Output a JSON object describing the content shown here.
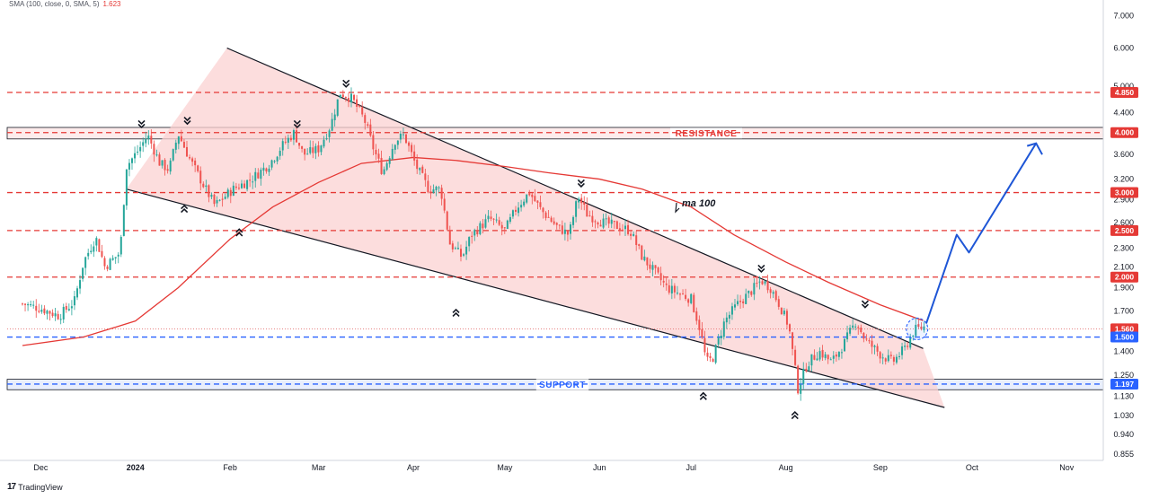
{
  "indicator": {
    "label": "SMA (100, close, 0, SMA, 5)",
    "value": "1.623"
  },
  "branding": {
    "logo_mark": "17",
    "name": "TradingView"
  },
  "colors": {
    "bull": "#26a69a",
    "bear": "#ef5350",
    "sma": "#e53935",
    "resistance": "#e53935",
    "support": "#2962ff",
    "channel_fill": "#fbd2d2",
    "projection": "#1e56d6"
  },
  "chart_data": {
    "type": "candlestick",
    "y_scale": "log",
    "ylim": [
      0.83,
      7.3
    ],
    "x_tick_labels": [
      "Dec",
      "2024",
      "Feb",
      "Mar",
      "Apr",
      "May",
      "Jun",
      "Jul",
      "Aug",
      "Sep",
      "Oct",
      "Nov"
    ],
    "y_tick_labels": [
      "7.000",
      "6.000",
      "5.000",
      "4.400",
      "3.600",
      "3.200",
      "2.900",
      "2.600",
      "2.300",
      "2.100",
      "1.900",
      "1.700",
      "1.400",
      "1.250",
      "1.130",
      "1.030",
      "0.940",
      "0.855"
    ],
    "price_badges": [
      {
        "label": "4.850",
        "value": 4.85,
        "kind": "resistance"
      },
      {
        "label": "4.000",
        "value": 4.0,
        "kind": "resistance"
      },
      {
        "label": "3.000",
        "value": 3.0,
        "kind": "resistance"
      },
      {
        "label": "2.500",
        "value": 2.5,
        "kind": "resistance"
      },
      {
        "label": "2.000",
        "value": 2.0,
        "kind": "resistance"
      },
      {
        "label": "1.560",
        "value": 1.56,
        "kind": "last"
      },
      {
        "label": "1.500",
        "value": 1.5,
        "kind": "support"
      },
      {
        "label": "1.197",
        "value": 1.197,
        "kind": "support"
      }
    ],
    "zones": [
      {
        "label": "RESISTANCE",
        "low": 3.88,
        "high": 4.1,
        "kind": "resistance"
      },
      {
        "label": "SUPPORT",
        "low": 1.165,
        "high": 1.225,
        "kind": "support"
      }
    ],
    "ma_label": "ma 100",
    "price_path": [
      [
        "2023-11-25",
        1.76
      ],
      [
        "2023-12-01",
        1.72
      ],
      [
        "2023-12-07",
        1.66
      ],
      [
        "2023-12-12",
        1.78
      ],
      [
        "2023-12-15",
        2.15
      ],
      [
        "2023-12-19",
        2.42
      ],
      [
        "2023-12-22",
        2.1
      ],
      [
        "2023-12-27",
        2.25
      ],
      [
        "2023-12-29",
        3.4
      ],
      [
        "2024-01-02",
        3.68
      ],
      [
        "2024-01-05",
        3.95
      ],
      [
        "2024-01-09",
        3.45
      ],
      [
        "2024-01-12",
        3.35
      ],
      [
        "2024-01-15",
        3.98
      ],
      [
        "2024-01-19",
        3.5
      ],
      [
        "2024-01-24",
        3.05
      ],
      [
        "2024-01-27",
        2.82
      ],
      [
        "2024-02-02",
        3.05
      ],
      [
        "2024-02-08",
        3.2
      ],
      [
        "2024-02-14",
        3.45
      ],
      [
        "2024-02-18",
        3.75
      ],
      [
        "2024-02-22",
        4.0
      ],
      [
        "2024-02-25",
        3.6
      ],
      [
        "2024-03-01",
        3.7
      ],
      [
        "2024-03-05",
        4.15
      ],
      [
        "2024-03-08",
        4.85
      ],
      [
        "2024-03-12",
        4.7
      ],
      [
        "2024-03-16",
        4.25
      ],
      [
        "2024-03-19",
        3.7
      ],
      [
        "2024-03-22",
        3.3
      ],
      [
        "2024-03-26",
        3.85
      ],
      [
        "2024-03-29",
        3.95
      ],
      [
        "2024-04-02",
        3.4
      ],
      [
        "2024-04-06",
        3.05
      ],
      [
        "2024-04-10",
        3.05
      ],
      [
        "2024-04-13",
        2.35
      ],
      [
        "2024-04-17",
        2.2
      ],
      [
        "2024-04-20",
        2.45
      ],
      [
        "2024-04-26",
        2.65
      ],
      [
        "2024-05-01",
        2.5
      ],
      [
        "2024-05-05",
        2.8
      ],
      [
        "2024-05-09",
        3.0
      ],
      [
        "2024-05-13",
        2.75
      ],
      [
        "2024-05-18",
        2.55
      ],
      [
        "2024-05-22",
        2.45
      ],
      [
        "2024-05-25",
        2.95
      ],
      [
        "2024-05-28",
        2.7
      ],
      [
        "2024-06-02",
        2.6
      ],
      [
        "2024-06-07",
        2.55
      ],
      [
        "2024-06-11",
        2.5
      ],
      [
        "2024-06-15",
        2.2
      ],
      [
        "2024-06-19",
        2.05
      ],
      [
        "2024-06-23",
        1.9
      ],
      [
        "2024-06-27",
        1.85
      ],
      [
        "2024-07-01",
        1.8
      ],
      [
        "2024-07-04",
        1.55
      ],
      [
        "2024-07-06",
        1.33
      ],
      [
        "2024-07-08",
        1.35
      ],
      [
        "2024-07-12",
        1.62
      ],
      [
        "2024-07-16",
        1.75
      ],
      [
        "2024-07-20",
        1.85
      ],
      [
        "2024-07-24",
        1.97
      ],
      [
        "2024-07-27",
        1.9
      ],
      [
        "2024-07-30",
        1.75
      ],
      [
        "2024-08-02",
        1.58
      ],
      [
        "2024-08-05",
        1.17
      ],
      [
        "2024-08-08",
        1.32
      ],
      [
        "2024-08-12",
        1.4
      ],
      [
        "2024-08-16",
        1.33
      ],
      [
        "2024-08-20",
        1.45
      ],
      [
        "2024-08-24",
        1.62
      ],
      [
        "2024-08-27",
        1.48
      ],
      [
        "2024-09-01",
        1.38
      ],
      [
        "2024-09-05",
        1.33
      ],
      [
        "2024-09-09",
        1.42
      ],
      [
        "2024-09-12",
        1.55
      ],
      [
        "2024-09-16",
        1.58
      ]
    ],
    "sma_path": [
      [
        "2023-11-25",
        1.44
      ],
      [
        "2023-12-15",
        1.5
      ],
      [
        "2024-01-01",
        1.62
      ],
      [
        "2024-01-15",
        1.9
      ],
      [
        "2024-02-01",
        2.4
      ],
      [
        "2024-02-15",
        2.8
      ],
      [
        "2024-03-01",
        3.15
      ],
      [
        "2024-03-15",
        3.45
      ],
      [
        "2024-04-01",
        3.55
      ],
      [
        "2024-04-15",
        3.5
      ],
      [
        "2024-05-01",
        3.4
      ],
      [
        "2024-05-15",
        3.3
      ],
      [
        "2024-06-01",
        3.2
      ],
      [
        "2024-06-15",
        3.05
      ],
      [
        "2024-07-01",
        2.8
      ],
      [
        "2024-07-15",
        2.45
      ],
      [
        "2024-08-01",
        2.15
      ],
      [
        "2024-08-15",
        1.95
      ],
      [
        "2024-09-01",
        1.75
      ],
      [
        "2024-09-15",
        1.623
      ]
    ],
    "channel_upper": [
      [
        "2024-01-31",
        6.0
      ],
      [
        "2024-09-15",
        1.42
      ]
    ],
    "channel_lower": [
      [
        "2023-12-29",
        3.05
      ],
      [
        "2024-09-22",
        1.07
      ]
    ],
    "projection": [
      [
        "2024-09-16",
        1.6
      ],
      [
        "2024-09-26",
        2.45
      ],
      [
        "2024-09-30",
        2.25
      ],
      [
        "2024-10-22",
        3.8
      ],
      [
        "2024-10-24",
        3.6
      ]
    ],
    "top_markers": [
      [
        "2024-01-03",
        4.2
      ],
      [
        "2024-01-18",
        4.27
      ],
      [
        "2024-02-23",
        4.2
      ],
      [
        "2024-03-10",
        5.1
      ],
      [
        "2024-05-26",
        3.16
      ],
      [
        "2024-07-24",
        2.1
      ],
      [
        "2024-08-27",
        1.77
      ]
    ],
    "bottom_markers": [
      [
        "2024-01-17",
        2.8
      ],
      [
        "2024-02-04",
        2.5
      ],
      [
        "2024-04-15",
        1.7
      ],
      [
        "2024-07-05",
        1.14
      ],
      [
        "2024-08-04",
        1.04
      ]
    ],
    "breakout_circle": [
      "2024-09-13",
      1.56
    ]
  }
}
